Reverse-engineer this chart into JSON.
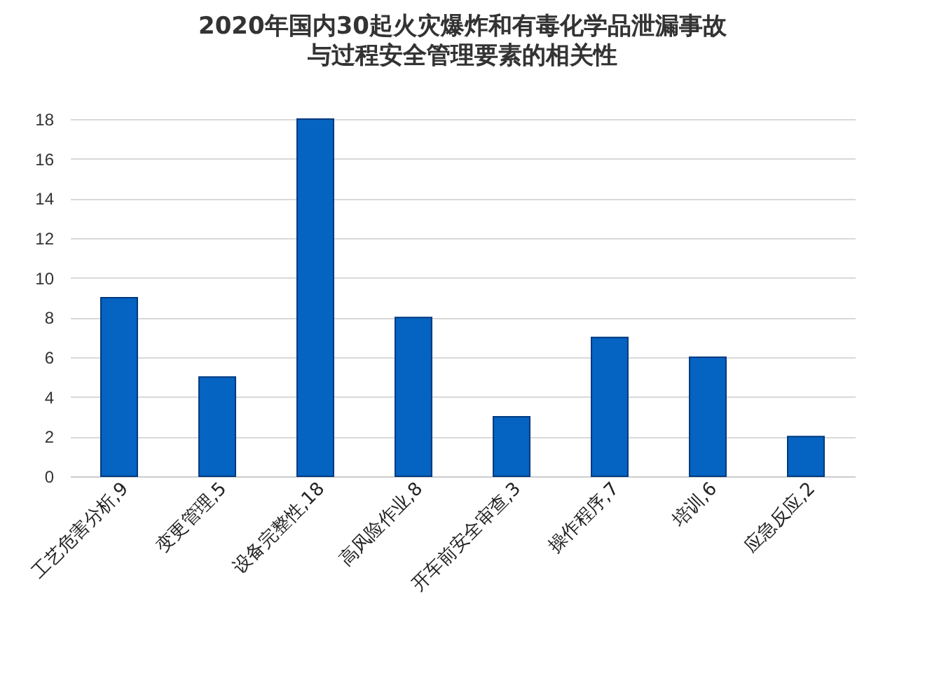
{
  "chart_data": {
    "type": "bar",
    "title": "2020年国内30起火灾爆炸和有毒化学品泄漏事故",
    "subtitle": "与过程安全管理要素的相关性",
    "categories": [
      "工艺危害分析,9",
      "变更管理,5",
      "设备完整性,18",
      "高风险作业,8",
      "开车前安全审查,3",
      "操作程序,7",
      "培训,6",
      "应急反应,2"
    ],
    "values": [
      9,
      5,
      18,
      8,
      3,
      7,
      6,
      2
    ],
    "color": "#0563c1",
    "ylim": [
      0,
      18
    ],
    "yticks": [
      0,
      2,
      4,
      6,
      8,
      10,
      12,
      14,
      16,
      18
    ],
    "grid": "y"
  }
}
